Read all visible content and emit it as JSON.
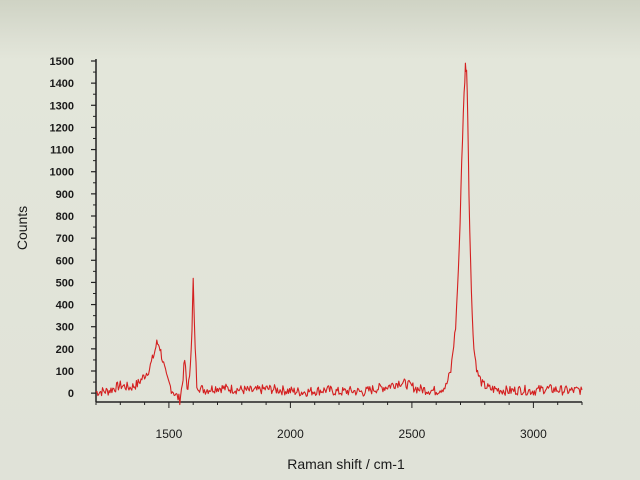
{
  "chart_data": {
    "type": "line",
    "title": "",
    "xlabel": "Raman shift / cm-1",
    "ylabel": "Counts",
    "xlim": [
      1200,
      3200
    ],
    "ylim": [
      -40,
      1500
    ],
    "x_ticks": [
      1500,
      2000,
      2500,
      3000
    ],
    "y_ticks": [
      0,
      100,
      200,
      300,
      400,
      500,
      600,
      700,
      800,
      900,
      1000,
      1100,
      1200,
      1300,
      1400,
      1500
    ],
    "grid": false,
    "series": [
      {
        "color": "#d42020",
        "x": [
          1200,
          1250,
          1300,
          1340,
          1370,
          1400,
          1420,
          1440,
          1450,
          1460,
          1470,
          1490,
          1510,
          1530,
          1545,
          1555,
          1565,
          1575,
          1585,
          1595,
          1600,
          1605,
          1615,
          1630,
          1650,
          1700,
          1750,
          1800,
          1850,
          1900,
          1950,
          2000,
          2050,
          2100,
          2150,
          2200,
          2250,
          2300,
          2350,
          2400,
          2450,
          2480,
          2520,
          2560,
          2600,
          2640,
          2660,
          2680,
          2695,
          2705,
          2715,
          2720,
          2725,
          2730,
          2735,
          2745,
          2755,
          2770,
          2790,
          2820,
          2860,
          2900,
          2950,
          3000,
          3050,
          3100,
          3150,
          3200
        ],
        "y": [
          5,
          10,
          35,
          25,
          40,
          80,
          110,
          180,
          225,
          220,
          170,
          70,
          20,
          -10,
          -30,
          40,
          150,
          20,
          60,
          300,
          510,
          300,
          40,
          20,
          15,
          25,
          20,
          15,
          10,
          20,
          15,
          10,
          5,
          10,
          15,
          5,
          10,
          5,
          20,
          30,
          50,
          40,
          20,
          15,
          10,
          30,
          100,
          300,
          650,
          1050,
          1350,
          1480,
          1460,
          1250,
          900,
          450,
          200,
          90,
          40,
          20,
          15,
          10,
          15,
          10,
          20,
          15,
          10,
          15
        ]
      }
    ]
  }
}
